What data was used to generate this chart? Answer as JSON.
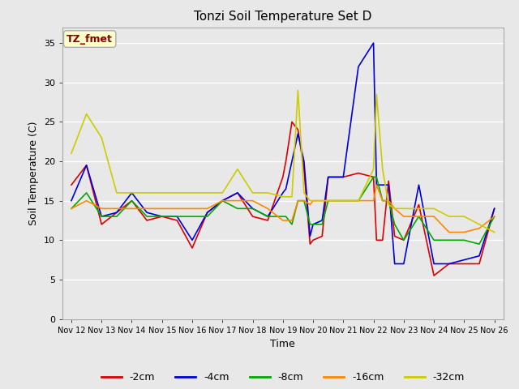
{
  "title": "Tonzi Soil Temperature Set D",
  "xlabel": "Time",
  "ylabel": "Soil Temperature (C)",
  "annotation": "TZ_fmet",
  "annotation_bbox": {
    "facecolor": "#ffffcc",
    "edgecolor": "#aaaaaa",
    "boxstyle": "round,pad=0.3"
  },
  "annotation_text_color": "#880000",
  "ylim": [
    0,
    37
  ],
  "yticks": [
    0,
    5,
    10,
    15,
    20,
    25,
    30,
    35
  ],
  "bg_color": "#e8e8e8",
  "plot_bg_color": "#e8e8e8",
  "grid_color": "#ffffff",
  "series": {
    "-2cm": {
      "color": "#dd0000",
      "lw": 1.2
    },
    "-4cm": {
      "color": "#0000dd",
      "lw": 1.2
    },
    "-8cm": {
      "color": "#00aa00",
      "lw": 1.2
    },
    "-16cm": {
      "color": "#ff8800",
      "lw": 1.2
    },
    "-32cm": {
      "color": "#cccc00",
      "lw": 1.2
    }
  },
  "xtick_labels": [
    "Nov 12",
    "Nov 13",
    "Nov 14",
    "Nov 15",
    "Nov 16",
    "Nov 17",
    "Nov 18",
    "Nov 19",
    "Nov 20",
    "Nov 21",
    "Nov 22",
    "Nov 23",
    "Nov 24",
    "Nov 25",
    "Nov 26"
  ],
  "data": {
    "x": [
      0,
      0.5,
      1,
      1.5,
      2,
      2.5,
      3,
      3.5,
      4,
      4.5,
      5,
      5.5,
      6,
      6.5,
      7,
      7.1,
      7.3,
      7.5,
      7.7,
      7.9,
      8,
      8.3,
      8.5,
      9,
      9.5,
      10,
      10.1,
      10.3,
      10.5,
      10.7,
      11,
      11.5,
      12,
      12.5,
      13,
      13.5,
      14
    ],
    "-2cm": [
      17,
      19.5,
      12,
      13.5,
      15,
      12.5,
      13,
      12.5,
      9,
      13.5,
      15,
      16,
      13,
      12.5,
      18,
      20,
      25,
      24,
      19,
      9.5,
      10,
      10.5,
      18,
      18,
      18.5,
      18,
      10,
      10,
      17.5,
      10.5,
      10,
      14.5,
      5.5,
      7,
      7,
      7,
      14
    ],
    "-4cm": [
      15,
      19.5,
      13,
      13.5,
      16,
      13.5,
      13,
      13,
      10,
      13.5,
      15,
      16,
      14,
      13,
      16,
      16.5,
      20,
      23.5,
      20,
      10.5,
      12,
      12.5,
      18,
      18,
      32,
      35,
      17,
      17,
      17,
      7,
      7,
      17,
      7,
      7,
      7.5,
      8,
      14
    ],
    "-8cm": [
      14,
      16,
      13,
      13,
      15,
      13,
      13,
      13,
      13,
      13,
      15,
      14,
      14,
      13,
      13,
      13,
      12,
      15,
      15,
      12,
      12,
      12,
      15,
      15,
      15,
      18,
      18,
      15,
      15,
      12,
      10,
      13,
      10,
      10,
      10,
      9.5,
      13
    ],
    "-16cm": [
      14,
      15,
      14,
      14,
      14,
      14,
      14,
      14,
      14,
      14,
      15,
      15,
      15,
      14,
      12.5,
      12.5,
      12.5,
      15,
      15,
      14.5,
      15,
      15,
      15,
      15,
      15,
      15,
      17,
      15,
      15,
      14,
      13,
      13,
      13,
      11,
      11,
      11.5,
      13
    ],
    "-32cm": [
      21,
      26,
      23,
      16,
      16,
      16,
      16,
      16,
      16,
      16,
      16,
      19,
      16,
      16,
      15.5,
      15.5,
      15.5,
      29,
      16,
      15,
      15,
      15,
      15,
      15,
      15,
      19,
      28.5,
      19,
      14.5,
      14,
      14,
      14,
      14,
      13,
      13,
      12,
      11
    ]
  }
}
